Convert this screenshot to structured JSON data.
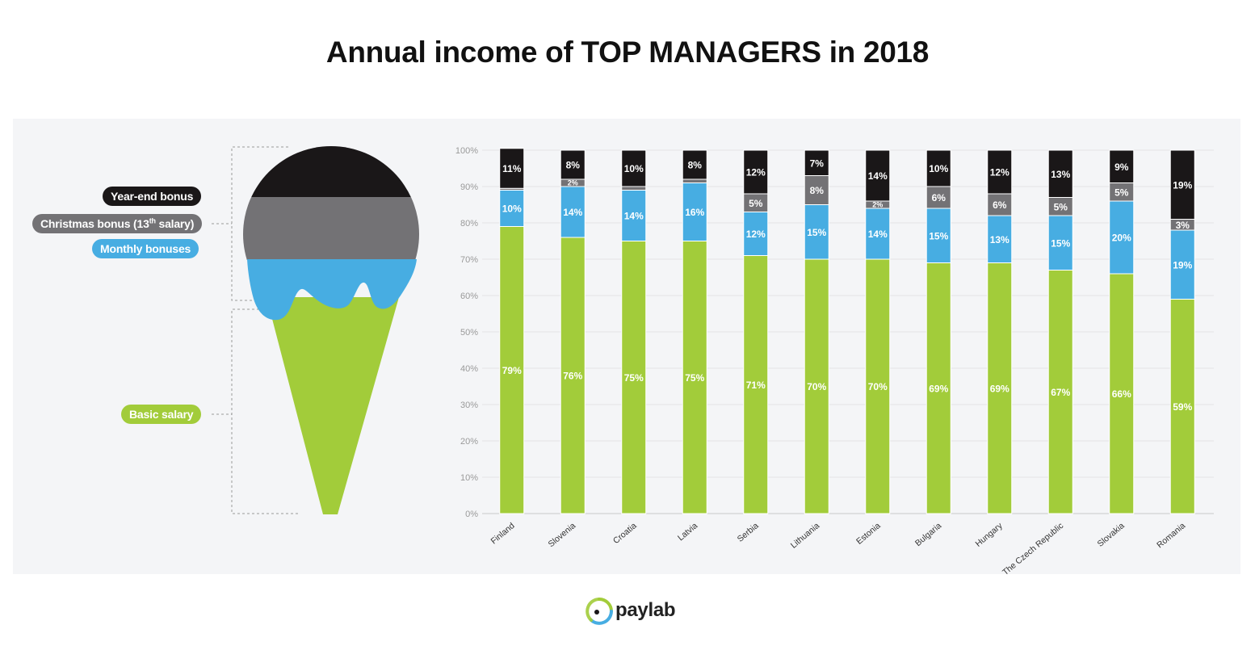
{
  "title": "Annual income of TOP MANAGERS in 2018",
  "legend": {
    "year_end": "Year-end bonus",
    "christmas_prefix": "Christmas bonus (13",
    "christmas_sup": "th",
    "christmas_suffix": " salary)",
    "monthly": "Monthly bonuses",
    "basic": "Basic salary"
  },
  "colors": {
    "year_end": "#1a1718",
    "christmas": "#737275",
    "monthly": "#47ade2",
    "basic": "#a2cc3a",
    "panel": "#f4f5f7"
  },
  "brand": {
    "name": "paylab",
    "logo_icon": "paylab-ring-icon"
  },
  "chart_data": {
    "type": "bar",
    "stacked": true,
    "ylim": [
      0,
      100
    ],
    "yticks": [
      "0%",
      "10%",
      "20%",
      "30%",
      "40%",
      "50%",
      "60%",
      "70%",
      "80%",
      "90%",
      "100%"
    ],
    "grid": true,
    "categories": [
      "Finland",
      "Slovenia",
      "Croatia",
      "Latvia",
      "Serbia",
      "Lithuania",
      "Estonia",
      "Bulgaria",
      "Hungary",
      "The Czech Republic",
      "Slovakia",
      "Romania"
    ],
    "series": [
      {
        "name": "Basic salary",
        "key": "basic",
        "values": [
          79,
          76,
          75,
          75,
          71,
          70,
          70,
          69,
          69,
          67,
          66,
          59
        ],
        "labels": [
          "79%",
          "76%",
          "75%",
          "75%",
          "71%",
          "70%",
          "70%",
          "69%",
          "69%",
          "67%",
          "66%",
          "59%"
        ]
      },
      {
        "name": "Monthly bonuses",
        "key": "monthly",
        "values": [
          10,
          14,
          14,
          16,
          12,
          15,
          14,
          15,
          13,
          15,
          20,
          19
        ],
        "labels": [
          "10%",
          "14%",
          "14%",
          "16%",
          "12%",
          "15%",
          "14%",
          "15%",
          "13%",
          "15%",
          "20%",
          "19%"
        ]
      },
      {
        "name": "Christmas bonus (13th salary)",
        "key": "christmas",
        "values": [
          0.5,
          2,
          1,
          1,
          5,
          8,
          2,
          6,
          6,
          5,
          5,
          3
        ],
        "labels": [
          "",
          "2%",
          "",
          "",
          "5%",
          "8%",
          "2%",
          "6%",
          "6%",
          "5%",
          "5%",
          "3%"
        ]
      },
      {
        "name": "Year-end bonus",
        "key": "year_end",
        "values": [
          11,
          8,
          10,
          8,
          12,
          7,
          14,
          10,
          12,
          13,
          9,
          19
        ],
        "labels": [
          "11%",
          "8%",
          "10%",
          "8%",
          "12%",
          "7%",
          "14%",
          "10%",
          "12%",
          "13%",
          "9%",
          "19%"
        ]
      }
    ]
  }
}
